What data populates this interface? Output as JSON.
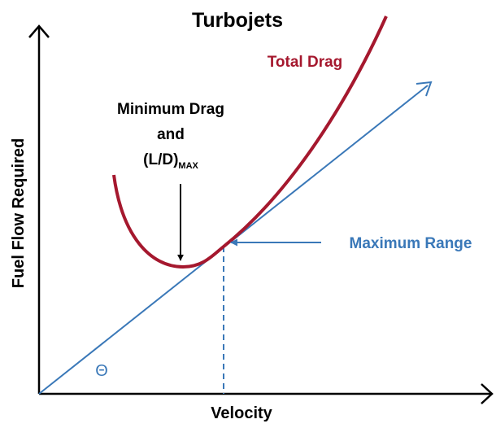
{
  "title": "Turbojets",
  "curve_label": "Total Drag",
  "annotation": {
    "line1": "Minimum Drag",
    "line2": "and",
    "line3": "(L/D)",
    "line3_sub": "MAX"
  },
  "range_label": "Maximum Range",
  "angle_label": "Θ",
  "x_axis_label": "Velocity",
  "y_axis_label": "Fuel Flow Required"
}
